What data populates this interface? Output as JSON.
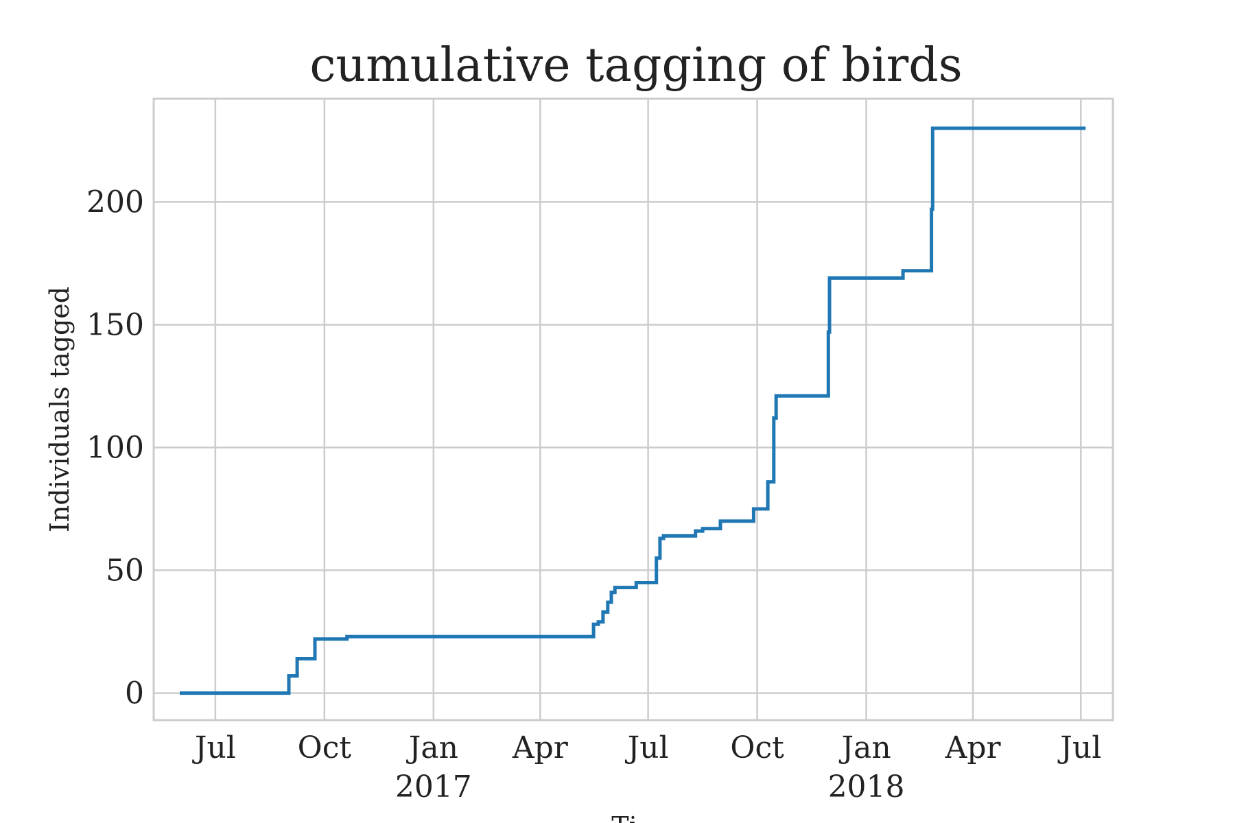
{
  "chart_data": {
    "type": "line",
    "title": "cumulative tagging of birds",
    "xlabel": "Ti",
    "ylabel": "Individuals tagged",
    "x_type": "date",
    "xlim": [
      "2016-05-10",
      "2018-07-28"
    ],
    "ylim": [
      -11,
      242
    ],
    "grid": true,
    "legend": "none",
    "x_ticks": [
      {
        "date": "2016-07-01",
        "label": "Jul",
        "year_label": ""
      },
      {
        "date": "2016-10-01",
        "label": "Oct",
        "year_label": ""
      },
      {
        "date": "2017-01-01",
        "label": "Jan",
        "year_label": "2017"
      },
      {
        "date": "2017-04-01",
        "label": "Apr",
        "year_label": ""
      },
      {
        "date": "2017-07-01",
        "label": "Jul",
        "year_label": ""
      },
      {
        "date": "2017-10-01",
        "label": "Oct",
        "year_label": ""
      },
      {
        "date": "2018-01-01",
        "label": "Jan",
        "year_label": "2018"
      },
      {
        "date": "2018-04-01",
        "label": "Apr",
        "year_label": ""
      },
      {
        "date": "2018-07-01",
        "label": "Jul",
        "year_label": ""
      }
    ],
    "y_ticks": [
      0,
      50,
      100,
      150,
      200
    ],
    "series": [
      {
        "color": "#1f77b4",
        "step": "post",
        "points": [
          {
            "x": "2016-06-01",
            "y": 0
          },
          {
            "x": "2016-09-01",
            "y": 7
          },
          {
            "x": "2016-09-08",
            "y": 14
          },
          {
            "x": "2016-09-23",
            "y": 22
          },
          {
            "x": "2016-10-20",
            "y": 23
          },
          {
            "x": "2017-05-16",
            "y": 28
          },
          {
            "x": "2017-05-20",
            "y": 29
          },
          {
            "x": "2017-05-24",
            "y": 33
          },
          {
            "x": "2017-05-28",
            "y": 37
          },
          {
            "x": "2017-05-31",
            "y": 41
          },
          {
            "x": "2017-06-03",
            "y": 43
          },
          {
            "x": "2017-06-21",
            "y": 45
          },
          {
            "x": "2017-07-08",
            "y": 55
          },
          {
            "x": "2017-07-11",
            "y": 63
          },
          {
            "x": "2017-07-14",
            "y": 64
          },
          {
            "x": "2017-08-10",
            "y": 66
          },
          {
            "x": "2017-08-16",
            "y": 67
          },
          {
            "x": "2017-08-31",
            "y": 70
          },
          {
            "x": "2017-09-28",
            "y": 75
          },
          {
            "x": "2017-10-10",
            "y": 86
          },
          {
            "x": "2017-10-15",
            "y": 112
          },
          {
            "x": "2017-10-17",
            "y": 121
          },
          {
            "x": "2017-11-30",
            "y": 147
          },
          {
            "x": "2017-12-01",
            "y": 169
          },
          {
            "x": "2018-02-01",
            "y": 172
          },
          {
            "x": "2018-02-25",
            "y": 197
          },
          {
            "x": "2018-02-26",
            "y": 230
          },
          {
            "x": "2018-07-05",
            "y": 230
          }
        ]
      }
    ]
  }
}
